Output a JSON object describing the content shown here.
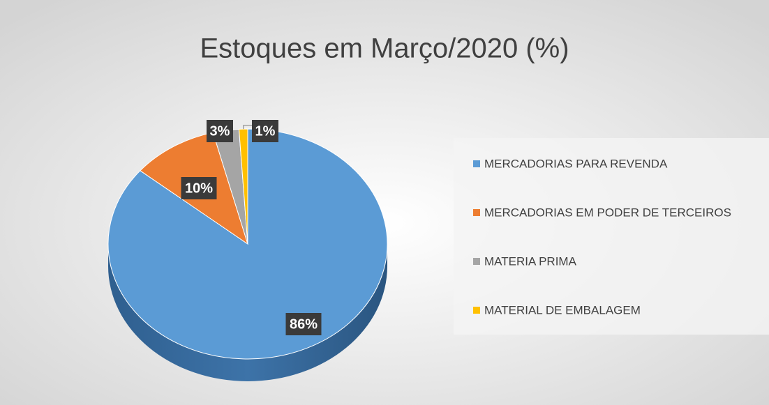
{
  "chart_data": {
    "type": "pie",
    "title": "Estoques em Março/2020 (%)",
    "categories": [
      "MERCADORIAS PARA REVENDA",
      "MERCADORIAS EM PODER DE TERCEIROS",
      "MATERIA PRIMA",
      "MATERIAL DE EMBALAGEM"
    ],
    "values": [
      86,
      10,
      3,
      1
    ],
    "value_labels": [
      "86%",
      "10%",
      "3%",
      "1%"
    ],
    "colors": [
      "#5b9bd5",
      "#ed7d31",
      "#a5a5a5",
      "#ffc000"
    ],
    "legend": "right"
  }
}
